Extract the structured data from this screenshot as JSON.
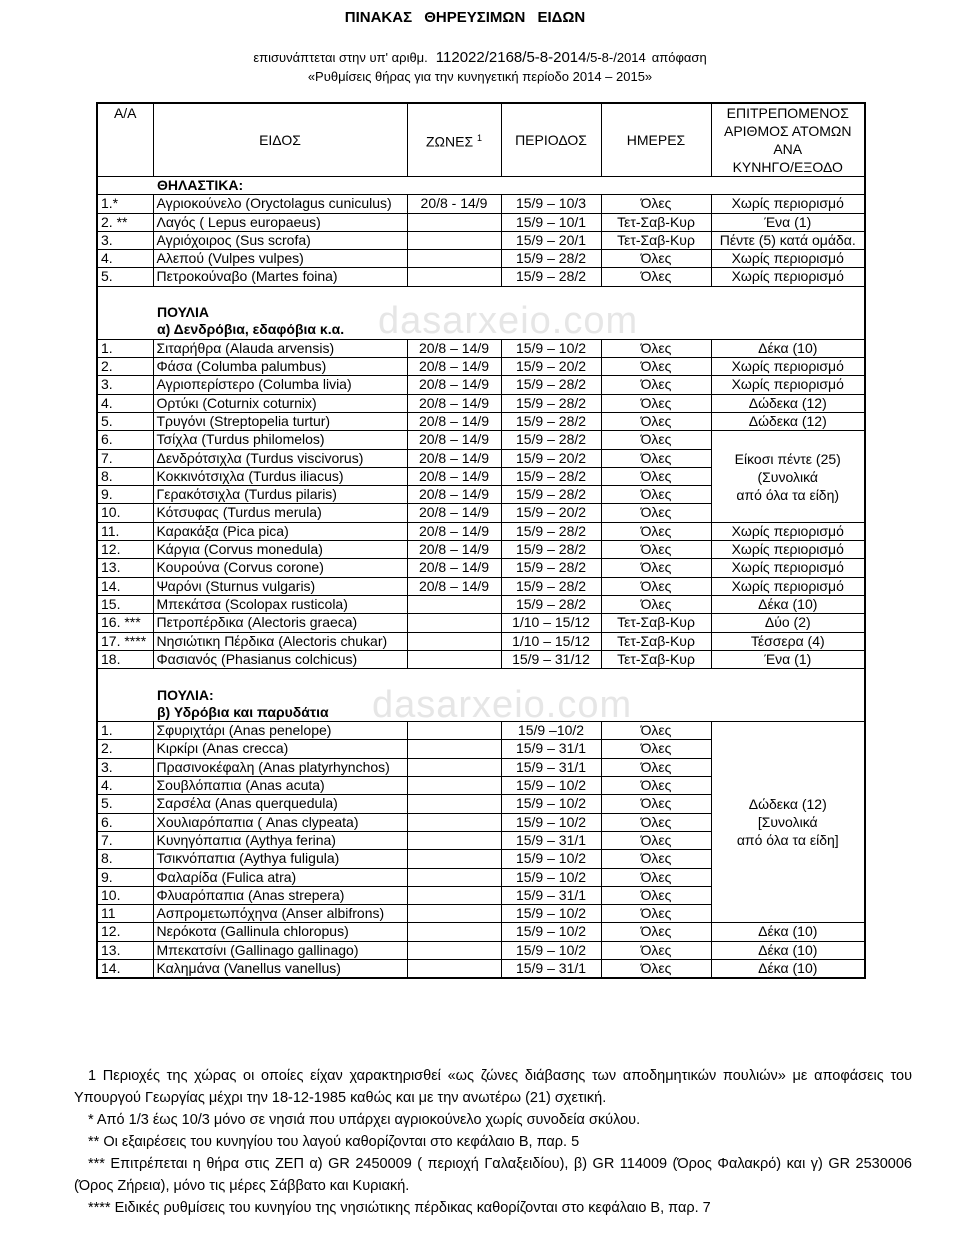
{
  "title": "ΠΙΝΑΚΑΣ ΘΗΡΕΥΣΙΜΩΝ ΕΙΔΩΝ",
  "subtitle": [
    "επισυνάπτεται στην υπ' αριθμ.",
    "112022/2168/5-8-2014",
    "/5-8-/2014",
    "απόφαση"
  ],
  "subtitle2": "«Ρυθμίσεις θήρας για την κυνηγετική περίοδο 2014 – 2015»",
  "watermark": "dasarxeio.com",
  "header": [
    "Α/Α",
    "ΕΙΔΟΣ",
    {
      "text": "ΖΩΝΕΣ",
      "sup": "1"
    },
    "ΠΕΡΙΟΔΟΣ",
    "ΗΜΕΡΕΣ",
    [
      "ΕΠΙΤΡΕΠΟΜΕΝΟΣ",
      "ΑΡΙΘΜΟΣ ΑΤΟΜΩΝ",
      "ΑΝΑ",
      "ΚΥΝΗΓΟ/ΕΞΟΔΟ"
    ]
  ],
  "sections": [
    {
      "heading": [
        "ΘΗΛΑΣΤΙΚΑ:"
      ],
      "rows": [
        [
          "1.*",
          "Αγριοκούνελο (Oryctolagus cuniculus)",
          "20/8 - 14/9",
          "15/9 – 10/3",
          "Όλες",
          "Χωρίς περιορισμό"
        ],
        [
          "2. **",
          "Λαγός ( Lepus europaeus)",
          null,
          "15/9 – 10/1",
          "Τετ-Σαβ-Κυρ",
          "Ένα (1)"
        ],
        [
          "3.",
          "Αγριόχοιρος (Sus scrofa)",
          null,
          "15/9 – 20/1",
          "Τετ-Σαβ-Κυρ",
          "Πέντε (5) κατά ομάδα."
        ],
        [
          "4.",
          "Αλεπού (Vulpes vulpes)",
          null,
          "15/9 – 28/2",
          "Όλες",
          "Χωρίς περιορισμό"
        ],
        [
          "5.",
          "Πετροκούναβο (Martes foina)",
          null,
          "15/9 – 28/2",
          "Όλες",
          "Χωρίς περιορισμό"
        ]
      ]
    },
    {
      "heading": [
        "ΠΟΥΛΙΑ",
        "α) Δενδρόβια, εδαφόβια κ.α."
      ],
      "rows": [
        [
          "1.",
          "Σιταρήθρα (Alauda arvensis)",
          "20/8 – 14/9",
          "15/9 – 10/2",
          "Όλες",
          "Δέκα (10)"
        ],
        [
          "2.",
          "Φάσα (Columba palumbus)",
          "20/8 – 14/9",
          "15/9 – 20/2",
          "Όλες",
          "Χωρίς περιορισμό"
        ],
        [
          "3.",
          "Αγριοπερίστερο (Columba livia)",
          "20/8 – 14/9",
          "15/9 – 28/2",
          "Όλες",
          "Χωρίς περιορισμό"
        ],
        [
          "4.",
          "Ορτύκι (Coturnix coturnix)",
          "20/8 – 14/9",
          "15/9 – 28/2",
          "Όλες",
          "Δώδεκα (12)"
        ],
        [
          "5.",
          "Τρυγόνι (Streptopelia turtur)",
          "20/8 – 14/9",
          "15/9 – 28/2",
          "Όλες",
          "Δώδεκα (12)"
        ],
        [
          "6.",
          "Τσίχλα (Turdus philomelos)",
          "20/8 – 14/9",
          "15/9 – 28/2",
          "Όλες",
          [
            "Είκοσι πέντε (25)",
            "(Συνολικά",
            "από όλα τα είδη)"
          ]
        ],
        [
          "7.",
          "Δενδρότσιχλα (Turdus viscivorus)",
          "20/8 – 14/9",
          "15/9 – 20/2",
          "Όλες",
          null
        ],
        [
          "8.",
          "Κοκκινότσιχλα (Turdus iliacus)",
          "20/8 – 14/9",
          "15/9 – 28/2",
          "Όλες",
          null
        ],
        [
          "9.",
          "Γερακότσιχλα (Turdus pilaris)",
          "20/8 – 14/9",
          "15/9 – 28/2",
          "Όλες",
          null
        ],
        [
          "10.",
          "Κότσυφας (Turdus merula)",
          "20/8 – 14/9",
          "15/9 – 20/2",
          "Όλες",
          null
        ],
        [
          "11.",
          "Καρακάξα (Pica pica)",
          "20/8 – 14/9",
          "15/9 – 28/2",
          "Όλες",
          "Χωρίς περιορισμό"
        ],
        [
          "12.",
          "Κάργια (Corvus monedula)",
          "20/8 – 14/9",
          "15/9 – 28/2",
          "Όλες",
          "Χωρίς περιορισμό"
        ],
        [
          "13.",
          "Κουρούνα (Corvus corone)",
          "20/8 – 14/9",
          "15/9 – 28/2",
          "Όλες",
          "Χωρίς περιορισμό"
        ],
        [
          "14.",
          "Ψαρόνι (Sturnus vulgaris)",
          "20/8 – 14/9",
          "15/9 – 28/2",
          "Όλες",
          "Χωρίς περιορισμό"
        ],
        [
          "15.",
          "Μπεκάτσα (Scolopax rusticola)",
          null,
          "15/9 – 28/2",
          "Όλες",
          "Δέκα (10)"
        ],
        [
          "16. ***",
          "Πετροπέρδικα (Alectoris graeca)",
          null,
          "1/10 – 15/12",
          "Τετ-Σαβ-Κυρ",
          "Δύο (2)"
        ],
        [
          "17. ****",
          "Νησιώτικη Πέρδικα (Alectoris chukar)",
          null,
          "1/10 – 15/12",
          "Τετ-Σαβ-Κυρ",
          "Τέσσερα (4)"
        ],
        [
          "18.",
          "Φασιανός (Phasianus colchicus)",
          null,
          "15/9 – 31/12",
          "Τετ-Σαβ-Κυρ",
          "Ένα (1)"
        ]
      ]
    },
    {
      "heading": [
        "ΠΟΥΛΙΑ:",
        "β) Υδρόβια και παρυδάτια"
      ],
      "rows": [
        [
          "1.",
          "Σφυριχτάρι (Anas penelope)",
          null,
          "15/9 –10/2",
          "Όλες",
          [
            "Δώδεκα (12)",
            "[Συνολικά",
            "από όλα τα είδη]"
          ]
        ],
        [
          "2.",
          "Κιρκίρι (Anas crecca)",
          null,
          "15/9 – 31/1",
          "Όλες",
          null
        ],
        [
          "3.",
          "Πρασινοκέφαλη (Anas platyrhynchos)",
          null,
          "15/9 – 31/1",
          "Όλες",
          null
        ],
        [
          "4.",
          "Σουβλόπαπια (Anas acuta)",
          null,
          "15/9 – 10/2",
          "Όλες",
          null
        ],
        [
          "5.",
          "Σαρσέλα (Anas querquedula)",
          null,
          "15/9 – 10/2",
          "Όλες",
          null
        ],
        [
          "6.",
          "Χουλιαρόπαπια ( Anas clypeata)",
          null,
          "15/9 – 10/2",
          "Όλες",
          null
        ],
        [
          "7.",
          "Κυνηγόπαπια (Aythya ferina)",
          null,
          "15/9 – 31/1",
          "Όλες",
          null
        ],
        [
          "8.",
          "Τσικνόπαπια (Aythya fuligula)",
          null,
          "15/9 – 10/2",
          "Όλες",
          null
        ],
        [
          "9.",
          "Φαλαρίδα (Fulica atra)",
          null,
          "15/9 – 10/2",
          "Όλες",
          null
        ],
        [
          "10.",
          "Φλυαρόπαπια  (Anas strepera)",
          null,
          "15/9 – 31/1",
          "Όλες",
          null
        ],
        [
          "11",
          "Ασπρομετωπόχηνα (Anser albifrons)",
          null,
          "15/9 – 10/2",
          "Όλες",
          null
        ],
        [
          "12.",
          "Νερόκοτα (Gallinula chloropus)",
          null,
          "15/9 – 10/2",
          "Όλες",
          "Δέκα (10)"
        ],
        [
          "13.",
          "Μπεκατσίνι (Gallinago gallinago)",
          null,
          "15/9 – 10/2",
          "Όλες",
          "Δέκα (10)"
        ],
        [
          "14.",
          "Καλημάνα (Vanellus vanellus)",
          null,
          "15/9 – 31/1",
          "Όλες",
          "Δέκα (10)"
        ]
      ]
    }
  ],
  "footnotes": [
    "1 Περιοχές της χώρας οι οποίες είχαν χαρακτηρισθεί «ως ζώνες διάβασης των αποδημητικών πουλιών» με αποφάσεις του Υπουργού Γεωργίας μέχρι την 18-12-1985 καθώς και με την ανωτέρω (21) σχετική.",
    "* Από 1/3 έως 10/3 μόνο σε νησιά που υπάρχει αγριοκούνελο χωρίς συνοδεία σκύλου.",
    "** Οι εξαιρέσεις του κυνηγίου του λαγού καθορίζονται στο κεφάλαιο Β, παρ. 5",
    "*** Επιτρέπεται η θήρα στις ΖΕΠ α) GR 2450009 ( περιοχή Γαλαξειδίου), β) GR 114009 (Όρος Φαλακρό) και γ) GR 2530006 (Όρος Ζήρεια), μόνο τις μέρες Σάββατο και Κυριακή.",
    "**** Ειδικές ρυθμίσεις του κυνηγίου της νησιώτικης πέρδικας καθορίζονται στο κεφάλαιο Β, παρ. 7"
  ]
}
